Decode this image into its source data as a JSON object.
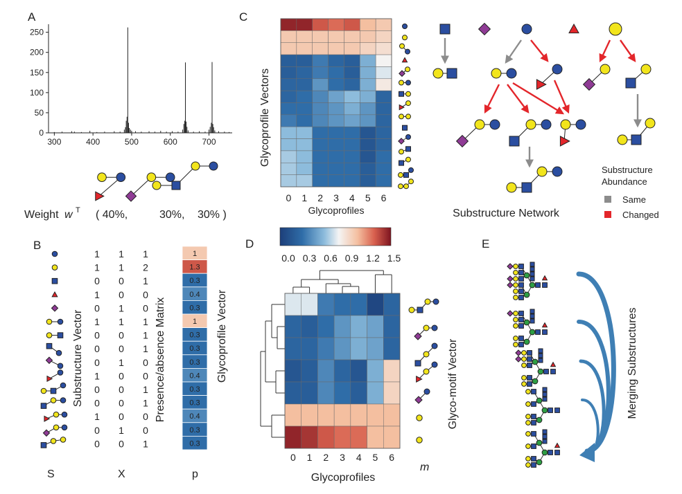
{
  "colors": {
    "galactose": "#f2e51c",
    "glcnac": "#2b4ea0",
    "glc_blue_circle": "#2b4ea0",
    "fucose": "#e3262b",
    "neu5ac": "#8f3b95",
    "mannose": "#2f9e44",
    "arrow_same": "#8c8c8c",
    "arrow_changed": "#e3262b",
    "merge_arrow": "#3f7fb4"
  },
  "panel_a": {
    "letter": "A",
    "chart_data": {
      "type": "bar",
      "x_ticks": [
        300,
        400,
        500,
        600,
        700
      ],
      "y_ticks": [
        0,
        50,
        100,
        150,
        200,
        250
      ],
      "xlim": [
        285,
        760
      ],
      "ylim": [
        0,
        270
      ],
      "peaks": [
        {
          "x": 300,
          "y": 2
        },
        {
          "x": 320,
          "y": 3
        },
        {
          "x": 345,
          "y": 4
        },
        {
          "x": 352,
          "y": 3
        },
        {
          "x": 370,
          "y": 2
        },
        {
          "x": 392,
          "y": 5
        },
        {
          "x": 410,
          "y": 2
        },
        {
          "x": 430,
          "y": 3
        },
        {
          "x": 455,
          "y": 4
        },
        {
          "x": 470,
          "y": 3
        },
        {
          "x": 481,
          "y": 8
        },
        {
          "x": 484,
          "y": 14
        },
        {
          "x": 486,
          "y": 30
        },
        {
          "x": 488,
          "y": 40
        },
        {
          "x": 490,
          "y": 262
        },
        {
          "x": 492,
          "y": 25
        },
        {
          "x": 494,
          "y": 12
        },
        {
          "x": 497,
          "y": 8
        },
        {
          "x": 500,
          "y": 5
        },
        {
          "x": 510,
          "y": 4
        },
        {
          "x": 525,
          "y": 3
        },
        {
          "x": 545,
          "y": 4
        },
        {
          "x": 560,
          "y": 3
        },
        {
          "x": 575,
          "y": 5
        },
        {
          "x": 590,
          "y": 3
        },
        {
          "x": 605,
          "y": 4
        },
        {
          "x": 620,
          "y": 3
        },
        {
          "x": 632,
          "y": 8
        },
        {
          "x": 635,
          "y": 22
        },
        {
          "x": 637,
          "y": 30
        },
        {
          "x": 639,
          "y": 175
        },
        {
          "x": 641,
          "y": 28
        },
        {
          "x": 643,
          "y": 15
        },
        {
          "x": 646,
          "y": 6
        },
        {
          "x": 660,
          "y": 3
        },
        {
          "x": 675,
          "y": 4
        },
        {
          "x": 690,
          "y": 3
        },
        {
          "x": 700,
          "y": 8
        },
        {
          "x": 703,
          "y": 15
        },
        {
          "x": 706,
          "y": 25
        },
        {
          "x": 708,
          "y": 176
        },
        {
          "x": 710,
          "y": 22
        },
        {
          "x": 712,
          "y": 14
        },
        {
          "x": 715,
          "y": 6
        },
        {
          "x": 725,
          "y": 4
        },
        {
          "x": 740,
          "y": 3
        },
        {
          "x": 752,
          "y": 2
        }
      ]
    },
    "weight_label": "Weight",
    "weight_symbol": "w",
    "weight_sup": "T",
    "weights": [
      "( 40%,",
      "30%,",
      "30% )"
    ]
  },
  "panel_b": {
    "letter": "B",
    "substructure_vector_label": "Substructure Vector",
    "presence_matrix_label": "Presence/absence Matrix",
    "glycoprofile_vector_label": "Glycoprofile Vector",
    "x_labels": [
      "S",
      "X",
      "p"
    ],
    "matrix": [
      [
        1,
        1,
        1
      ],
      [
        1,
        1,
        2
      ],
      [
        0,
        0,
        1
      ],
      [
        1,
        0,
        0
      ],
      [
        0,
        1,
        0
      ],
      [
        1,
        1,
        1
      ],
      [
        0,
        0,
        1
      ],
      [
        0,
        0,
        1
      ],
      [
        0,
        1,
        0
      ],
      [
        1,
        0,
        0
      ],
      [
        0,
        0,
        1
      ],
      [
        0,
        0,
        1
      ],
      [
        1,
        0,
        0
      ],
      [
        0,
        1,
        0
      ],
      [
        0,
        0,
        1
      ]
    ],
    "p_values": [
      "1",
      "1.3",
      "0.3",
      "0.4",
      "0.3",
      "1",
      "0.3",
      "0.3",
      "0.3",
      "0.4",
      "0.3",
      "0.3",
      "0.4",
      "0.3",
      "0.3"
    ]
  },
  "panel_c": {
    "letter": "C",
    "y_label": "Glycoprofile Vectors",
    "x_label": "Glycoprofiles",
    "x_ticks": [
      "0",
      "1",
      "2",
      "3",
      "4",
      "5",
      "6"
    ],
    "heatmap": [
      [
        1.45,
        1.45,
        1.3,
        1.25,
        1.3,
        1.05,
        1.0
      ],
      [
        1.0,
        1.0,
        1.0,
        1.0,
        1.0,
        1.0,
        0.95
      ],
      [
        1.0,
        1.0,
        1.0,
        1.0,
        1.0,
        0.95,
        0.9
      ],
      [
        0.2,
        0.2,
        0.35,
        0.25,
        0.2,
        0.55,
        0.8
      ],
      [
        0.2,
        0.25,
        0.35,
        0.3,
        0.2,
        0.55,
        0.75
      ],
      [
        0.25,
        0.25,
        0.45,
        0.3,
        0.25,
        0.55,
        0.85
      ],
      [
        0.25,
        0.3,
        0.4,
        0.5,
        0.6,
        0.55,
        0.25
      ],
      [
        0.3,
        0.3,
        0.4,
        0.45,
        0.55,
        0.45,
        0.25
      ],
      [
        0.35,
        0.3,
        0.4,
        0.45,
        0.5,
        0.45,
        0.25
      ],
      [
        0.6,
        0.6,
        0.3,
        0.3,
        0.3,
        0.15,
        0.25
      ],
      [
        0.6,
        0.6,
        0.3,
        0.3,
        0.3,
        0.15,
        0.25
      ],
      [
        0.65,
        0.6,
        0.3,
        0.3,
        0.3,
        0.15,
        0.3
      ],
      [
        0.65,
        0.6,
        0.3,
        0.3,
        0.3,
        0.2,
        0.3
      ],
      [
        0.65,
        0.65,
        0.3,
        0.3,
        0.3,
        0.2,
        0.3
      ]
    ],
    "network_title": "Substructure Network",
    "legend_title_1": "Substructure",
    "legend_title_2": "Abundance",
    "legend_same": "Same",
    "legend_changed": "Changed"
  },
  "colorbar": {
    "ticks": [
      "0.0",
      "0.3",
      "0.6",
      "0.9",
      "1.2",
      "1.5"
    ],
    "vmin": 0.0,
    "vmax": 1.5
  },
  "panel_d": {
    "letter": "D",
    "x_label": "Glycoprofiles",
    "x_ticks": [
      "0",
      "1",
      "2",
      "3",
      "4",
      "5",
      "6"
    ],
    "motif_label": "Glyco-motif Vector",
    "motif_symbol": "m",
    "heatmap": [
      [
        0.75,
        0.75,
        0.35,
        0.3,
        0.3,
        0.05,
        0.25
      ],
      [
        0.25,
        0.2,
        0.3,
        0.45,
        0.55,
        0.5,
        0.25
      ],
      [
        0.25,
        0.25,
        0.35,
        0.45,
        0.55,
        0.5,
        0.25
      ],
      [
        0.15,
        0.2,
        0.4,
        0.25,
        0.15,
        0.55,
        0.95
      ],
      [
        0.2,
        0.2,
        0.4,
        0.3,
        0.2,
        0.55,
        0.95
      ],
      [
        1.05,
        1.05,
        1.05,
        1.05,
        1.05,
        1.05,
        1.05
      ],
      [
        1.45,
        1.4,
        1.3,
        1.25,
        1.25,
        1.05,
        1.05
      ]
    ]
  },
  "panel_e": {
    "letter": "E",
    "merge_label": "Merging Substructures"
  }
}
